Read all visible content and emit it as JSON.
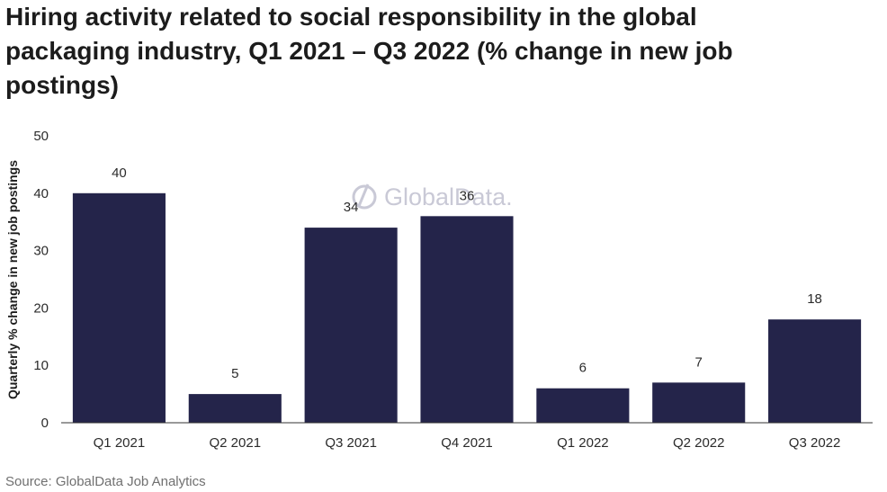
{
  "title": "Hiring activity related to social responsibility in the global packaging industry, Q1 2021 – Q3 2022 (% change in new job postings)",
  "source": "Source: GlobalData Job Analytics",
  "watermark": "GlobalData.",
  "colors": {
    "bar": "#24244a",
    "axis": "#333333",
    "text": "#2b2b2b"
  },
  "chart_data": {
    "type": "bar",
    "title": "Hiring activity related to social responsibility in the global packaging industry, Q1 2021 – Q3 2022 (% change in new job postings)",
    "categories": [
      "Q1 2021",
      "Q2 2021",
      "Q3 2021",
      "Q4 2021",
      "Q1 2022",
      "Q2 2022",
      "Q3 2022"
    ],
    "values": [
      40,
      5,
      34,
      36,
      6,
      7,
      18
    ],
    "xlabel": "",
    "ylabel": "Quarterly % change in new job postings",
    "ylim": [
      0,
      50
    ],
    "yticks": [
      0,
      10,
      20,
      30,
      40,
      50
    ],
    "grid": false,
    "legend": "none"
  }
}
